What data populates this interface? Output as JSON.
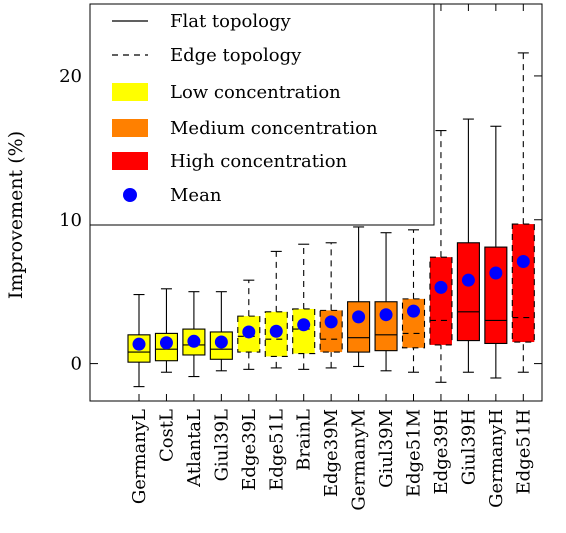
{
  "chart_data": {
    "type": "boxplot",
    "title": "",
    "xlabel": "",
    "ylabel": "Improvement (%)",
    "ylim": [
      -2.6,
      25
    ],
    "yticks": [
      0,
      10,
      20
    ],
    "grid": false,
    "legend_position": "top-left",
    "legend": [
      {
        "label": "Flat topology",
        "kind": "line-solid"
      },
      {
        "label": "Edge topology",
        "kind": "line-dashed"
      },
      {
        "label": "Low concentration",
        "kind": "patch",
        "color": "#ffff00"
      },
      {
        "label": "Medium concentration",
        "kind": "patch",
        "color": "#ff8000"
      },
      {
        "label": "High concentration",
        "kind": "patch",
        "color": "#ff0000"
      },
      {
        "label": "Mean",
        "kind": "marker",
        "color": "#0000ff"
      }
    ],
    "colors": {
      "low": "#ffff00",
      "medium": "#ff8000",
      "high": "#ff0000",
      "mean": "#0000ff"
    },
    "categories": [
      "GermanyL",
      "CostL",
      "AtlantaL",
      "Giul39L",
      "Edge39L",
      "Edge51L",
      "BrainL",
      "Edge39M",
      "GermanyM",
      "Giul39M",
      "Edge51M",
      "Edge39H",
      "Giul39H",
      "GermanyH",
      "Edge51H"
    ],
    "boxes": [
      {
        "name": "GermanyL",
        "topology": "flat",
        "concentration": "low",
        "min": -1.6,
        "q1": 0.1,
        "median": 0.8,
        "q3": 2.0,
        "max": 4.8,
        "mean": 1.35
      },
      {
        "name": "CostL",
        "topology": "flat",
        "concentration": "low",
        "min": -0.6,
        "q1": 0.2,
        "median": 1.0,
        "q3": 2.1,
        "max": 5.2,
        "mean": 1.45
      },
      {
        "name": "AtlantaL",
        "topology": "flat",
        "concentration": "low",
        "min": -0.9,
        "q1": 0.6,
        "median": 1.3,
        "q3": 2.4,
        "max": 5.0,
        "mean": 1.55
      },
      {
        "name": "Giul39L",
        "topology": "flat",
        "concentration": "low",
        "min": -0.5,
        "q1": 0.3,
        "median": 1.0,
        "q3": 2.2,
        "max": 5.0,
        "mean": 1.5
      },
      {
        "name": "Edge39L",
        "topology": "edge",
        "concentration": "low",
        "min": -0.4,
        "q1": 0.8,
        "median": 1.9,
        "q3": 3.3,
        "max": 5.8,
        "mean": 2.2
      },
      {
        "name": "Edge51L",
        "topology": "edge",
        "concentration": "low",
        "min": -0.3,
        "q1": 0.5,
        "median": 1.7,
        "q3": 3.6,
        "max": 7.8,
        "mean": 2.25
      },
      {
        "name": "BrainL",
        "topology": "edge",
        "concentration": "low",
        "min": -0.4,
        "q1": 0.7,
        "median": 2.4,
        "q3": 3.8,
        "max": 8.3,
        "mean": 2.7
      },
      {
        "name": "Edge39M",
        "topology": "edge",
        "concentration": "medium",
        "min": -0.3,
        "q1": 0.8,
        "median": 1.7,
        "q3": 3.7,
        "max": 8.4,
        "mean": 2.9
      },
      {
        "name": "GermanyM",
        "topology": "flat",
        "concentration": "medium",
        "min": -0.2,
        "q1": 0.8,
        "median": 1.8,
        "q3": 4.3,
        "max": 9.5,
        "mean": 3.25
      },
      {
        "name": "Giul39M",
        "topology": "flat",
        "concentration": "medium",
        "min": -0.5,
        "q1": 0.9,
        "median": 2.0,
        "q3": 4.3,
        "max": 9.1,
        "mean": 3.4
      },
      {
        "name": "Edge51M",
        "topology": "edge",
        "concentration": "medium",
        "min": -0.6,
        "q1": 1.1,
        "median": 2.1,
        "q3": 4.5,
        "max": 9.3,
        "mean": 3.65
      },
      {
        "name": "Edge39H",
        "topology": "edge",
        "concentration": "high",
        "min": -1.3,
        "q1": 1.3,
        "median": 3.0,
        "q3": 7.4,
        "max": 16.2,
        "mean": 5.3
      },
      {
        "name": "Giul39H",
        "topology": "flat",
        "concentration": "high",
        "min": -0.6,
        "q1": 1.6,
        "median": 3.6,
        "q3": 8.4,
        "max": 17.0,
        "mean": 5.8
      },
      {
        "name": "GermanyH",
        "topology": "flat",
        "concentration": "high",
        "min": -1.0,
        "q1": 1.4,
        "median": 3.0,
        "q3": 8.1,
        "max": 16.5,
        "mean": 6.3
      },
      {
        "name": "Edge51H",
        "topology": "edge",
        "concentration": "high",
        "min": -0.6,
        "q1": 1.5,
        "median": 3.2,
        "q3": 9.7,
        "max": 21.6,
        "mean": 7.1
      }
    ]
  }
}
